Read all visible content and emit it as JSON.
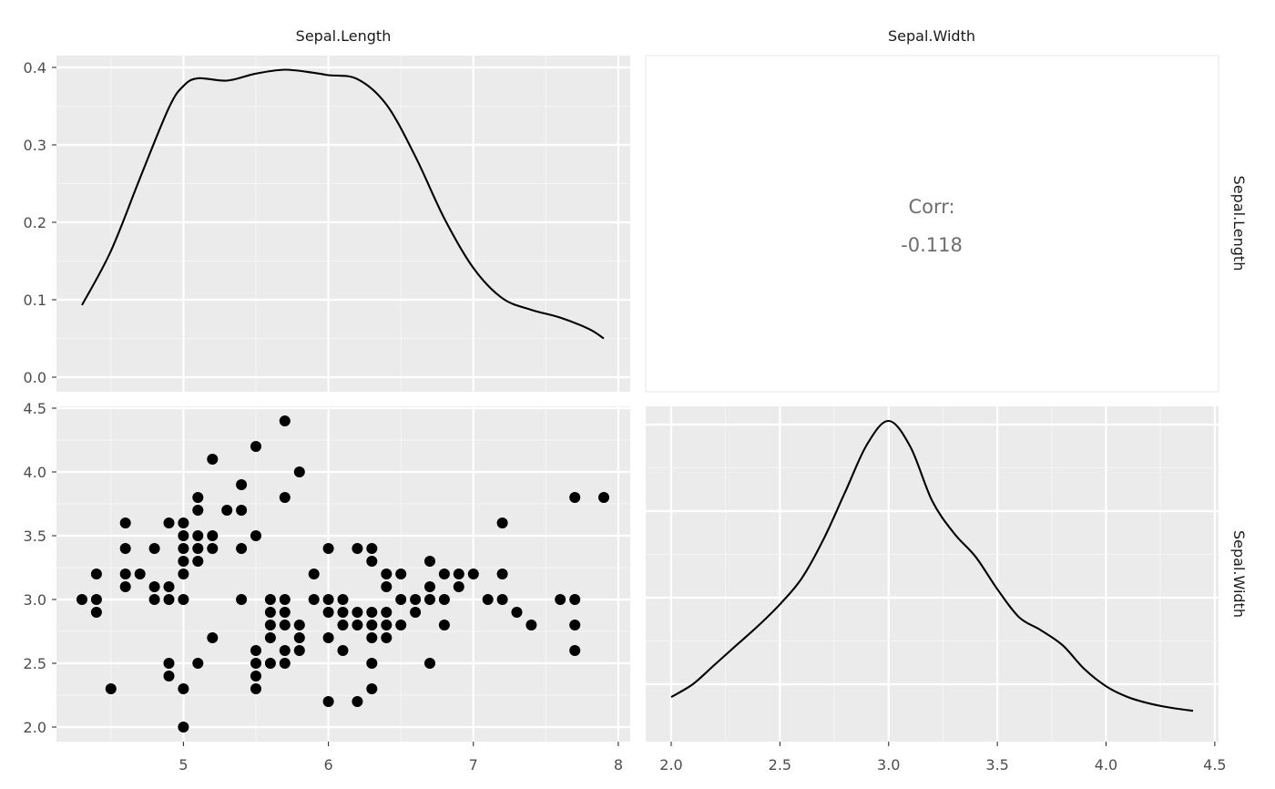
{
  "chart_data": {
    "type": "scatter",
    "variables": [
      "Sepal.Length",
      "Sepal.Width"
    ],
    "column_strips": [
      "Sepal.Length",
      "Sepal.Width"
    ],
    "row_strips": [
      "Sepal.Length",
      "Sepal.Width"
    ],
    "axes": {
      "Sepal.Length": {
        "range": [
          4.3,
          7.9
        ],
        "ticks": [
          5,
          6,
          7,
          8
        ],
        "tick_labels": [
          "5",
          "6",
          "7",
          "8"
        ]
      },
      "Sepal.Width": {
        "range": [
          2.0,
          4.4
        ],
        "ticks": [
          2.0,
          2.5,
          3.0,
          3.5,
          4.0,
          4.5
        ],
        "tick_labels": [
          "2.0",
          "2.5",
          "3.0",
          "3.5",
          "4.0",
          "4.5"
        ]
      },
      "density_y": {
        "range": [
          0,
          0.4
        ],
        "ticks": [
          0.0,
          0.1,
          0.2,
          0.3,
          0.4
        ],
        "tick_labels": [
          "0.0",
          "0.1",
          "0.2",
          "0.3",
          "0.4"
        ]
      }
    },
    "grid": true,
    "correlation": {
      "label": "Corr:",
      "value": "-0.118"
    },
    "density": {
      "Sepal.Length": {
        "x": [
          4.3,
          4.5,
          4.7,
          4.9,
          5.0,
          5.1,
          5.3,
          5.5,
          5.7,
          5.9,
          6.0,
          6.2,
          6.4,
          6.6,
          6.8,
          7.0,
          7.2,
          7.4,
          7.6,
          7.8,
          7.9
        ],
        "y": [
          0.093,
          0.163,
          0.257,
          0.348,
          0.376,
          0.386,
          0.383,
          0.392,
          0.397,
          0.393,
          0.39,
          0.385,
          0.352,
          0.285,
          0.205,
          0.141,
          0.102,
          0.087,
          0.077,
          0.062,
          0.05
        ]
      },
      "Sepal.Width": {
        "x": [
          2.0,
          2.1,
          2.2,
          2.3,
          2.4,
          2.5,
          2.6,
          2.7,
          2.8,
          2.9,
          3.0,
          3.1,
          3.2,
          3.3,
          3.4,
          3.5,
          3.6,
          3.7,
          3.8,
          3.9,
          4.0,
          4.1,
          4.2,
          4.3,
          4.4
        ],
        "y": [
          0.04,
          0.07,
          0.115,
          0.16,
          0.205,
          0.255,
          0.315,
          0.405,
          0.515,
          0.625,
          0.68,
          0.62,
          0.495,
          0.42,
          0.365,
          0.29,
          0.225,
          0.195,
          0.16,
          0.105,
          0.065,
          0.04,
          0.025,
          0.015,
          0.008
        ]
      }
    },
    "scatter_points": [
      [
        4.3,
        3.0
      ],
      [
        4.4,
        3.2
      ],
      [
        4.4,
        3.0
      ],
      [
        4.4,
        2.9
      ],
      [
        4.5,
        2.3
      ],
      [
        4.6,
        3.6
      ],
      [
        4.6,
        3.4
      ],
      [
        4.6,
        3.2
      ],
      [
        4.6,
        3.1
      ],
      [
        4.7,
        3.2
      ],
      [
        4.8,
        3.4
      ],
      [
        4.8,
        3.1
      ],
      [
        4.8,
        3.0
      ],
      [
        4.9,
        3.6
      ],
      [
        4.9,
        3.1
      ],
      [
        4.9,
        3.0
      ],
      [
        4.9,
        2.5
      ],
      [
        4.9,
        2.4
      ],
      [
        5.0,
        3.6
      ],
      [
        5.0,
        3.5
      ],
      [
        5.0,
        3.4
      ],
      [
        5.0,
        3.3
      ],
      [
        5.0,
        3.2
      ],
      [
        5.0,
        3.0
      ],
      [
        5.0,
        2.3
      ],
      [
        5.0,
        2.0
      ],
      [
        5.1,
        3.8
      ],
      [
        5.1,
        3.7
      ],
      [
        5.1,
        3.5
      ],
      [
        5.1,
        3.4
      ],
      [
        5.1,
        3.3
      ],
      [
        5.1,
        2.5
      ],
      [
        5.2,
        4.1
      ],
      [
        5.2,
        3.5
      ],
      [
        5.2,
        3.4
      ],
      [
        5.2,
        2.7
      ],
      [
        5.3,
        3.7
      ],
      [
        5.4,
        3.9
      ],
      [
        5.4,
        3.7
      ],
      [
        5.4,
        3.4
      ],
      [
        5.4,
        3.0
      ],
      [
        5.5,
        4.2
      ],
      [
        5.5,
        3.5
      ],
      [
        5.5,
        2.6
      ],
      [
        5.5,
        2.5
      ],
      [
        5.5,
        2.4
      ],
      [
        5.5,
        2.3
      ],
      [
        5.6,
        3.0
      ],
      [
        5.6,
        2.9
      ],
      [
        5.6,
        2.8
      ],
      [
        5.6,
        2.7
      ],
      [
        5.6,
        2.5
      ],
      [
        5.7,
        4.4
      ],
      [
        5.7,
        3.8
      ],
      [
        5.7,
        3.0
      ],
      [
        5.7,
        2.9
      ],
      [
        5.7,
        2.8
      ],
      [
        5.7,
        2.6
      ],
      [
        5.7,
        2.5
      ],
      [
        5.8,
        4.0
      ],
      [
        5.8,
        2.8
      ],
      [
        5.8,
        2.7
      ],
      [
        5.8,
        2.6
      ],
      [
        5.9,
        3.2
      ],
      [
        5.9,
        3.0
      ],
      [
        6.0,
        3.4
      ],
      [
        6.0,
        3.0
      ],
      [
        6.0,
        2.9
      ],
      [
        6.0,
        2.7
      ],
      [
        6.0,
        2.2
      ],
      [
        6.1,
        3.0
      ],
      [
        6.1,
        2.9
      ],
      [
        6.1,
        2.8
      ],
      [
        6.1,
        2.6
      ],
      [
        6.2,
        3.4
      ],
      [
        6.2,
        2.9
      ],
      [
        6.2,
        2.8
      ],
      [
        6.2,
        2.2
      ],
      [
        6.3,
        3.4
      ],
      [
        6.3,
        3.3
      ],
      [
        6.3,
        2.9
      ],
      [
        6.3,
        2.8
      ],
      [
        6.3,
        2.7
      ],
      [
        6.3,
        2.5
      ],
      [
        6.3,
        2.3
      ],
      [
        6.4,
        3.2
      ],
      [
        6.4,
        3.1
      ],
      [
        6.4,
        2.9
      ],
      [
        6.4,
        2.8
      ],
      [
        6.4,
        2.7
      ],
      [
        6.5,
        3.2
      ],
      [
        6.5,
        3.0
      ],
      [
        6.5,
        2.8
      ],
      [
        6.6,
        3.0
      ],
      [
        6.6,
        2.9
      ],
      [
        6.7,
        3.3
      ],
      [
        6.7,
        3.1
      ],
      [
        6.7,
        3.0
      ],
      [
        6.7,
        2.5
      ],
      [
        6.8,
        3.2
      ],
      [
        6.8,
        3.0
      ],
      [
        6.8,
        2.8
      ],
      [
        6.9,
        3.2
      ],
      [
        6.9,
        3.1
      ],
      [
        7.0,
        3.2
      ],
      [
        7.1,
        3.0
      ],
      [
        7.2,
        3.6
      ],
      [
        7.2,
        3.2
      ],
      [
        7.2,
        3.0
      ],
      [
        7.3,
        2.9
      ],
      [
        7.4,
        2.8
      ],
      [
        7.6,
        3.0
      ],
      [
        7.7,
        3.8
      ],
      [
        7.7,
        3.0
      ],
      [
        7.7,
        2.8
      ],
      [
        7.7,
        2.6
      ],
      [
        7.9,
        3.8
      ]
    ]
  }
}
